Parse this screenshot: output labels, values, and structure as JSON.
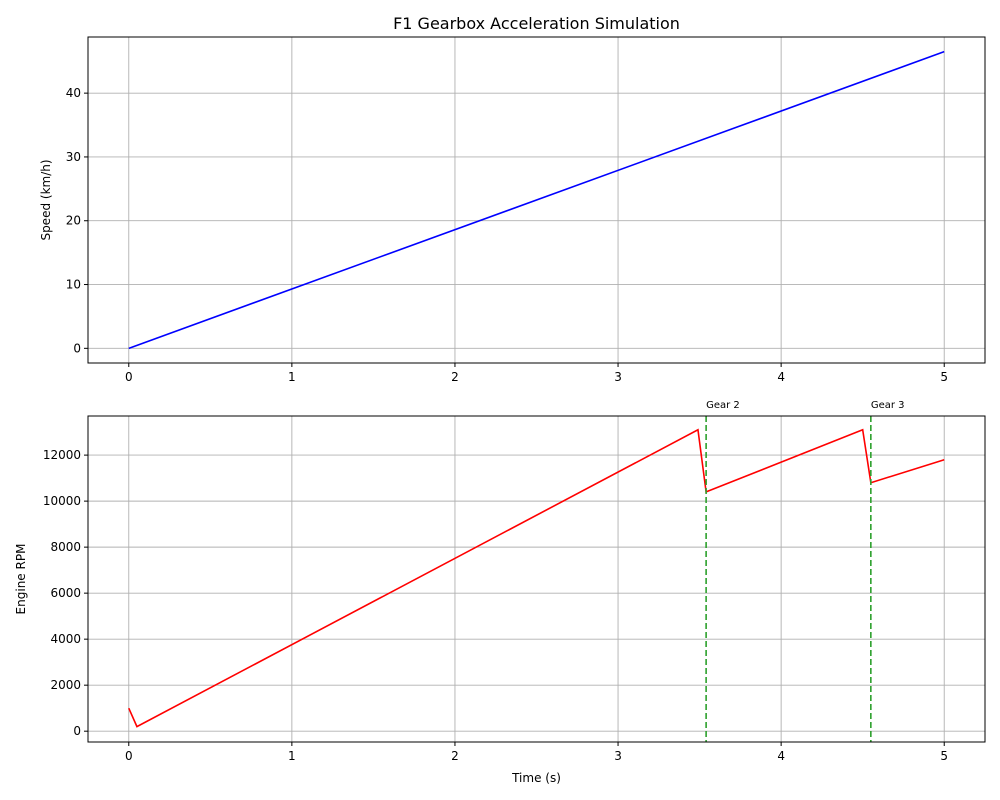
{
  "chart_data": [
    {
      "type": "line",
      "title": "F1 Gearbox Acceleration Simulation",
      "xlabel": "",
      "ylabel": "Speed (km/h)",
      "xlim": [
        -0.25,
        5.25
      ],
      "ylim": [
        -2.3,
        48.8
      ],
      "xticks": [
        0,
        1,
        2,
        3,
        4,
        5
      ],
      "yticks": [
        0,
        10,
        20,
        30,
        40
      ],
      "grid": true,
      "series": [
        {
          "color": "#0000ff",
          "x": [
            0,
            5
          ],
          "y": [
            0,
            46.5
          ]
        }
      ],
      "annotations": []
    },
    {
      "type": "line",
      "title": "",
      "xlabel": "Time (s)",
      "ylabel": "Engine RPM",
      "xlim": [
        -0.25,
        5.25
      ],
      "ylim": [
        -470,
        13700
      ],
      "xticks": [
        0,
        1,
        2,
        3,
        4,
        5
      ],
      "yticks": [
        0,
        2000,
        4000,
        6000,
        8000,
        10000,
        12000
      ],
      "grid": true,
      "series": [
        {
          "color": "#ff0000",
          "x": [
            0,
            0.05,
            3.49,
            3.54,
            4.5,
            4.55,
            5.0
          ],
          "y": [
            1000,
            200,
            13100,
            10400,
            13100,
            10800,
            11800
          ]
        }
      ],
      "annotations": [
        {
          "x": 3.54,
          "label": "Gear 2",
          "color": "#2ca02c"
        },
        {
          "x": 4.55,
          "label": "Gear 3",
          "color": "#2ca02c"
        }
      ]
    }
  ]
}
